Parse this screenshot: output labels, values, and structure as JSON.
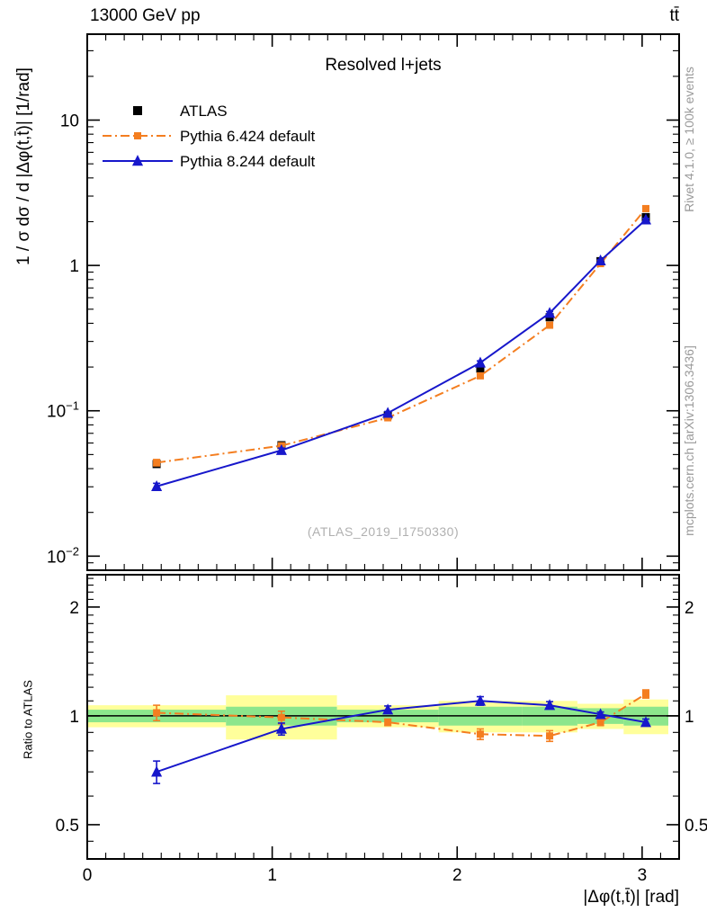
{
  "chart_data": {
    "type": "line",
    "header_left": "13000 GeV pp",
    "header_right": "tt̄",
    "title": "Resolved l+jets",
    "watermark": "(ATLAS_2019_I1750330)",
    "side_text_top": "Rivet 4.1.0, ≥ 100k events",
    "side_text_bottom": "mcplots.cern.ch [arXiv:1306.3436]",
    "xlabel": "|Δφ(t,t̄)| [rad]",
    "ylabel_main": "1 / σ dσ / d |Δφ(t,t̄)| [1/rad]",
    "ylabel_ratio": "Ratio to ATLAS",
    "axes": {
      "x_range": [
        0,
        3.2
      ],
      "y_range_main": [
        0.008,
        39
      ],
      "y_range_ratio": [
        0.402,
        2.457
      ],
      "y_scale": "log",
      "x_ticks": [
        {
          "v": 0,
          "label": "0"
        },
        {
          "v": 1,
          "label": "1"
        },
        {
          "v": 2,
          "label": "2"
        },
        {
          "v": 3,
          "label": "3"
        }
      ],
      "y_ticks_main": [
        {
          "v": 10,
          "label": "10",
          "exp": ""
        },
        {
          "v": 1,
          "label": "1",
          "exp": ""
        },
        {
          "v": 0.1,
          "label": "10",
          "exp": "−1"
        },
        {
          "v": 0.01,
          "label": "10",
          "exp": "−2"
        }
      ],
      "y_ticks_ratio": [
        {
          "v": 2,
          "label": "2"
        },
        {
          "v": 1,
          "label": "1"
        },
        {
          "v": 0.5,
          "label": "0.5"
        }
      ]
    },
    "bin_edges": [
      0,
      0.75,
      1.35,
      1.9,
      2.35,
      2.65,
      2.9,
      3.1416
    ],
    "x": [
      0.375,
      1.05,
      1.625,
      2.125,
      2.5,
      2.775,
      3.02
    ],
    "series": [
      {
        "name": "ATLAS",
        "color": "#000000",
        "marker": "square",
        "line": "none",
        "values": [
          0.043,
          0.058,
          0.093,
          0.195,
          0.44,
          1.07,
          2.15
        ],
        "ratio": [
          1,
          1,
          1,
          1,
          1,
          1,
          1
        ],
        "ratio_err": [
          0,
          0,
          0,
          0,
          0,
          0,
          0
        ]
      },
      {
        "name": "Pythia 6.424 default",
        "color": "#f47e20",
        "marker": "square",
        "line": "dashdot",
        "values": [
          0.044,
          0.0575,
          0.0895,
          0.174,
          0.388,
          1.03,
          2.46
        ],
        "ratio": [
          1.02,
          0.99,
          0.96,
          0.89,
          0.88,
          0.96,
          1.15
        ],
        "ratio_err": [
          0.05,
          0.04,
          0.02,
          0.03,
          0.03,
          0.02,
          0.03
        ]
      },
      {
        "name": "Pythia 8.244 default",
        "color": "#1717cb",
        "marker": "triangle",
        "line": "solid",
        "values": [
          0.0302,
          0.0535,
          0.0965,
          0.214,
          0.47,
          1.08,
          2.065
        ],
        "ratio": [
          0.7,
          0.92,
          1.04,
          1.1,
          1.07,
          1.01,
          0.96
        ],
        "ratio_err": [
          0.05,
          0.035,
          0.025,
          0.03,
          0.025,
          0.015,
          0.02
        ]
      }
    ],
    "ratio_bands": {
      "green_color": "#8ce68c",
      "yellow_color": "#ffff9b",
      "green": [
        0.04,
        0.06,
        0.04,
        0.06,
        0.06,
        0.05,
        0.06
      ],
      "yellow": [
        0.07,
        0.14,
        0.07,
        0.1,
        0.1,
        0.08,
        0.11
      ]
    }
  }
}
